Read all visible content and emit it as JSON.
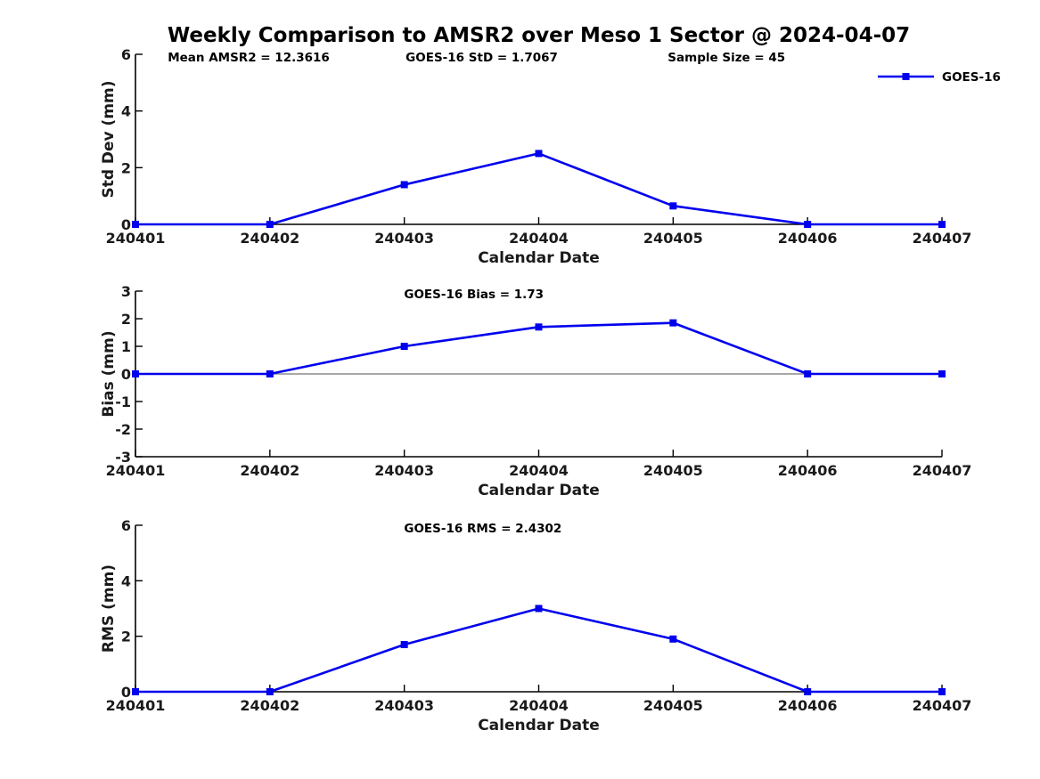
{
  "title": "Weekly Comparison to AMSR2 over Meso 1 Sector @ 2024-04-07",
  "colors": {
    "series": "#0000ee",
    "axis": "#000000",
    "tick_label": "#1a1a1a",
    "annotation": "#000000",
    "zero_line": "#8c8c8c"
  },
  "legend": {
    "label": "GOES-16",
    "position": "top-right"
  },
  "chart_data": [
    {
      "type": "line",
      "ylabel": "Std Dev (mm)",
      "xlabel": "Calendar Date",
      "categories": [
        "240401",
        "240402",
        "240403",
        "240404",
        "240405",
        "240406",
        "240407"
      ],
      "series": [
        {
          "name": "GOES-16",
          "values": [
            0,
            0,
            1.4,
            2.5,
            0.65,
            0,
            0
          ]
        }
      ],
      "ylim": [
        0,
        6
      ],
      "yticks": [
        0,
        2,
        4,
        6
      ],
      "grid": false,
      "zero_line": false,
      "show_legend": true,
      "annotations": [
        {
          "text": "Mean AMSR2 = 12.3616",
          "xfrac": 0.04
        },
        {
          "text": "GOES-16 StD = 1.7067",
          "xfrac": 0.335
        },
        {
          "text": "Sample Size = 45",
          "xfrac": 0.66
        }
      ]
    },
    {
      "type": "line",
      "ylabel": "Bias (mm)",
      "xlabel": "Calendar Date",
      "categories": [
        "240401",
        "240402",
        "240403",
        "240404",
        "240405",
        "240406",
        "240407"
      ],
      "series": [
        {
          "name": "GOES-16",
          "values": [
            0,
            0,
            1.0,
            1.7,
            1.85,
            0,
            0
          ]
        }
      ],
      "ylim": [
        -3,
        3
      ],
      "yticks": [
        -3,
        -2,
        -1,
        0,
        1,
        2,
        3
      ],
      "grid": false,
      "zero_line": true,
      "show_legend": false,
      "annotations": [
        {
          "text": "GOES-16 Bias  = 1.73",
          "xfrac": 0.333
        }
      ]
    },
    {
      "type": "line",
      "ylabel": "RMS (mm)",
      "xlabel": "Calendar Date",
      "categories": [
        "240401",
        "240402",
        "240403",
        "240404",
        "240405",
        "240406",
        "240407"
      ],
      "series": [
        {
          "name": "GOES-16",
          "values": [
            0,
            0,
            1.7,
            3.0,
            1.9,
            0,
            0
          ]
        }
      ],
      "ylim": [
        0,
        6
      ],
      "yticks": [
        0,
        2,
        4,
        6
      ],
      "grid": false,
      "zero_line": false,
      "show_legend": false,
      "annotations": [
        {
          "text": "GOES-16 RMS = 2.4302",
          "xfrac": 0.333
        }
      ]
    }
  ]
}
